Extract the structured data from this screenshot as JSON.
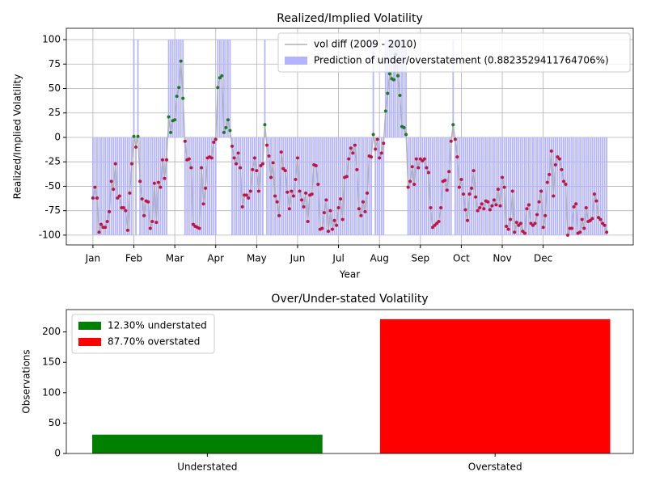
{
  "chart_data": [
    {
      "type": "combo",
      "title": "Realized/Implied Volatility",
      "x_label": "Year",
      "y_label": "Realized/Implied Volatility",
      "xlim": [
        -13,
        264
      ],
      "ylim": [
        -110,
        111.6
      ],
      "xticks": [
        {
          "value": 0,
          "label": "Jan"
        },
        {
          "value": 20,
          "label": "Feb"
        },
        {
          "value": 40,
          "label": "Mar"
        },
        {
          "value": 60,
          "label": "Apr"
        },
        {
          "value": 80,
          "label": "May"
        },
        {
          "value": 100,
          "label": "Jun"
        },
        {
          "value": 120,
          "label": "Jul"
        },
        {
          "value": 140,
          "label": "Aug"
        },
        {
          "value": 160,
          "label": "Sep"
        },
        {
          "value": 180,
          "label": "Oct"
        },
        {
          "value": 200,
          "label": "Nov"
        },
        {
          "value": 220,
          "label": "Dec"
        }
      ],
      "yticks": [
        -100,
        -75,
        -50,
        -25,
        0,
        25,
        50,
        75,
        100
      ],
      "grid": true,
      "legend": "upper right",
      "series": [
        {
          "name": "vol diff (2009 - 2010)",
          "type": "line",
          "color": "#b0b0b0",
          "positive_color": "#1f7a1f",
          "negative_color": "#c0163c",
          "values": [
            -62,
            -51,
            -62,
            -97,
            -89,
            -92,
            -92,
            -86,
            -76,
            -45,
            -53,
            -27,
            -62,
            -60,
            -72,
            -72,
            -75,
            -95,
            -57,
            -27,
            1,
            -10,
            1,
            -45,
            -63,
            -80,
            -65,
            -66,
            -93,
            -86,
            -47,
            -87,
            -46,
            -51,
            -23,
            -42,
            -23,
            21,
            5,
            17,
            18,
            42,
            51,
            78,
            40,
            -4,
            -23,
            -22,
            -31,
            -89,
            -91,
            -92,
            -93,
            -31,
            -68,
            -52,
            -21,
            -20,
            -21,
            -5,
            -2,
            51,
            61,
            63,
            5,
            10,
            18,
            7,
            -9,
            -21,
            -27,
            -16,
            -31,
            -71,
            -59,
            -59,
            -62,
            -55,
            -33,
            -21,
            -34,
            -55,
            -29,
            -27,
            13,
            -8,
            -19,
            -41,
            -26,
            -60,
            -66,
            -80,
            -15,
            -32,
            -34,
            -56,
            -73,
            -55,
            -60,
            -43,
            -21,
            -55,
            -64,
            -71,
            -57,
            -86,
            -59,
            -58,
            -28,
            -29,
            -48,
            -94,
            -93,
            -77,
            -64,
            -96,
            -75,
            -94,
            -85,
            -90,
            -72,
            -63,
            -84,
            -41,
            -40,
            -22,
            -11,
            -16,
            -8,
            -33,
            -73,
            -80,
            -66,
            -76,
            -57,
            -19,
            -20,
            3,
            -12,
            -2,
            -21,
            -16,
            -6,
            27,
            45,
            65,
            60,
            59,
            85,
            63,
            43,
            11,
            10,
            3,
            -51,
            -45,
            -30,
            -48,
            -22,
            -31,
            -22,
            -24,
            -22,
            -31,
            -36,
            -72,
            -92,
            -90,
            -88,
            -86,
            -72,
            -45,
            -44,
            -54,
            -35,
            -4,
            13,
            -2,
            -20,
            -51,
            -43,
            -58,
            -74,
            -85,
            -58,
            -52,
            -34,
            -61,
            -75,
            -72,
            -68,
            -73,
            -65,
            -66,
            -74,
            -70,
            -64,
            -69,
            -53,
            -70,
            -41,
            -51,
            -91,
            -94,
            -84,
            -55,
            -97,
            -87,
            -90,
            -88,
            -96,
            -98,
            -73,
            -69,
            -88,
            -90,
            -88,
            -79,
            -66,
            -55,
            -92,
            -80,
            -46,
            -38,
            -14,
            -60,
            -28,
            -20,
            -22,
            -33,
            -45,
            -48,
            -100,
            -93,
            -93,
            -71,
            -68,
            -98,
            -97,
            -84,
            -93,
            -72,
            -86,
            -85,
            -83,
            -58,
            -65,
            -82,
            -84,
            -88,
            -90,
            -97
          ]
        },
        {
          "name": "Prediction of under/overstatement (0.8823529411764706%)",
          "type": "bar",
          "color": "#b3b3ff",
          "values": [
            -100,
            -100,
            -100,
            -100,
            -100,
            -100,
            -100,
            -100,
            -100,
            -100,
            -100,
            -100,
            -100,
            -100,
            -100,
            -100,
            -100,
            -100,
            -100,
            -100,
            100,
            -100,
            100,
            -100,
            -100,
            -100,
            -100,
            -100,
            -100,
            -100,
            -100,
            -100,
            -100,
            -100,
            -100,
            -100,
            -100,
            100,
            100,
            100,
            100,
            100,
            100,
            100,
            100,
            -100,
            -100,
            -100,
            -100,
            -100,
            -100,
            -100,
            -100,
            -100,
            -100,
            -100,
            -100,
            -100,
            -100,
            -100,
            -100,
            100,
            100,
            100,
            100,
            100,
            100,
            100,
            -100,
            -100,
            -100,
            -100,
            -100,
            -100,
            -100,
            -100,
            -100,
            -100,
            -100,
            -100,
            -100,
            -100,
            -100,
            -100,
            100,
            -100,
            -100,
            -100,
            -100,
            -100,
            -100,
            -100,
            -100,
            -100,
            -100,
            -100,
            -100,
            -100,
            -100,
            -100,
            -100,
            -100,
            -100,
            -100,
            -100,
            -100,
            -100,
            -100,
            -100,
            -100,
            -100,
            -100,
            -100,
            -100,
            -100,
            -100,
            -100,
            -100,
            -100,
            -100,
            -100,
            -100,
            -100,
            -100,
            -100,
            -100,
            -100,
            -100,
            -100,
            -100,
            -100,
            -100,
            -100,
            -100,
            -100,
            -100,
            -100,
            100,
            -100,
            -100,
            -100,
            -100,
            -100,
            100,
            100,
            100,
            100,
            100,
            100,
            100,
            100,
            100,
            100,
            100,
            -100,
            -100,
            -100,
            -100,
            -100,
            -100,
            -100,
            -100,
            -100,
            -100,
            -100,
            -100,
            -100,
            -100,
            -100,
            -100,
            -100,
            -100,
            -100,
            -100,
            -100,
            -100,
            100,
            -100,
            -100,
            -100,
            -100,
            -100,
            -100,
            -100,
            -100,
            -100,
            -100,
            -100,
            -100,
            -100,
            -100,
            -100,
            -100,
            -100,
            -100,
            -100,
            -100,
            -100,
            -100,
            -100,
            -100,
            -100,
            -100,
            -100,
            -100,
            -100,
            -100,
            -100,
            -100,
            -100,
            -100,
            -100,
            -100,
            -100,
            -100,
            -100,
            -100,
            -100,
            -100,
            -100,
            -100,
            -100,
            -100,
            -100,
            -100,
            -100,
            -100,
            -100,
            -100,
            -100,
            -100,
            -100,
            -100,
            -100,
            -100,
            -100,
            -100,
            -100,
            -100,
            -100,
            -100,
            -100,
            -100,
            -100,
            -100,
            -100,
            -100,
            -100,
            -100,
            -100,
            -100,
            -100
          ]
        }
      ]
    },
    {
      "type": "bar",
      "title": "Over/Under-stated Volatility",
      "y_label": "Observations",
      "categories": [
        "Understated",
        "Overstated"
      ],
      "ylim": [
        0,
        236.8
      ],
      "yticks": [
        0,
        50,
        100,
        150,
        200
      ],
      "grid": false,
      "legend": "upper left",
      "series": [
        {
          "name": "12.30% understated",
          "color": "#008000",
          "values": [
            31,
            null
          ]
        },
        {
          "name": "87.70% overstated",
          "color": "#ff0000",
          "values": [
            null,
            221
          ]
        }
      ]
    }
  ]
}
